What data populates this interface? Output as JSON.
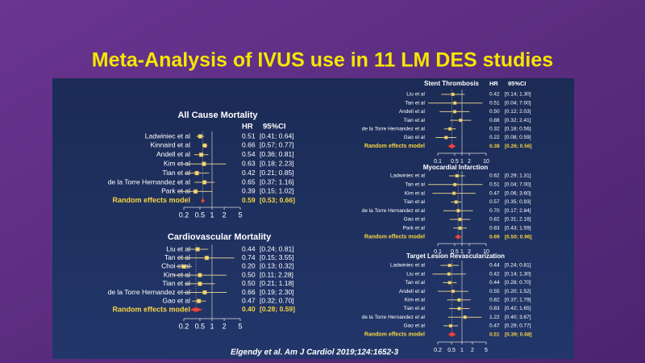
{
  "title": "Meta-Analysis of IVUS use in 11 LM DES studies",
  "citation": "Elgendy et al. Am J Cardiol 2019;124:1652-3",
  "chart_data": [
    {
      "type": "forest",
      "title": "All Cause Mortality",
      "columns": [
        "HR",
        "95%CI"
      ],
      "categories": [
        "Ladwiniec et al",
        "Kinnaird et al",
        "Andell et al",
        "Kim et al",
        "Tian et al",
        "de la Torre Hernandez et al",
        "Park et al"
      ],
      "values": [
        0.51,
        0.66,
        0.54,
        0.63,
        0.42,
        0.65,
        0.39
      ],
      "value_labels": [
        "0.51",
        "0.66",
        "0.54",
        "0.63",
        "0.42",
        "0.65",
        "0.39"
      ],
      "lower": [
        0.41,
        0.57,
        0.36,
        0.18,
        0.21,
        0.37,
        0.15
      ],
      "upper": [
        0.64,
        0.77,
        0.81,
        2.23,
        0.85,
        1.16,
        1.02
      ],
      "ci_labels": [
        "[0.41; 0.64]",
        "[0.57; 0.77]",
        "[0.36; 0.81]",
        "[0.18; 2.23]",
        "[0.21; 0.85]",
        "[0.37; 1.16]",
        "[0.15; 1.02]"
      ],
      "summary": {
        "name": "Random effects model",
        "value": 0.59,
        "value_label": "0.59",
        "lower": 0.53,
        "upper": 0.66,
        "ci_label": "[0.53; 0.66]"
      },
      "log_x": true,
      "xlim": [
        0.2,
        5
      ],
      "xticks": [
        0.2,
        0.5,
        1,
        2,
        5
      ]
    },
    {
      "type": "forest",
      "title": "Cardiovascular Mortality",
      "categories": [
        "Liu et al",
        "Tan et al",
        "Choi et al",
        "Kim et al",
        "Tian et al",
        "de la Torre Hernandez et al",
        "Gao et al"
      ],
      "values": [
        0.44,
        0.74,
        0.2,
        0.5,
        0.5,
        0.66,
        0.47
      ],
      "value_labels": [
        "0.44",
        "0.74",
        "0.20",
        "0.50",
        "0.50",
        "0.66",
        "0.47"
      ],
      "lower": [
        0.24,
        0.15,
        0.13,
        0.11,
        0.21,
        0.19,
        0.32
      ],
      "upper": [
        0.81,
        3.55,
        0.32,
        2.28,
        1.18,
        2.3,
        0.7
      ],
      "ci_labels": [
        "[0.24; 0.81]",
        "[0.15; 3.55]",
        "[0.13; 0.32]",
        "[0.11; 2.28]",
        "[0.21; 1.18]",
        "[0.19; 2.30]",
        "[0.32; 0.70]"
      ],
      "summary": {
        "name": "Random effects model",
        "value": 0.4,
        "value_label": "0.40",
        "lower": 0.28,
        "upper": 0.59,
        "ci_label": "[0.28; 0.59]"
      },
      "log_x": true,
      "xlim": [
        0.2,
        5
      ],
      "xticks": [
        0.2,
        0.5,
        1,
        2,
        5
      ]
    },
    {
      "type": "forest",
      "title": "Stent Thrombosis",
      "columns": [
        "HR",
        "95%CI"
      ],
      "categories": [
        "Liu et al",
        "Tan et al",
        "Andell et al",
        "Tian et al",
        "de la Torre Hernandez et al",
        "Gao et al"
      ],
      "values": [
        0.42,
        0.51,
        0.5,
        0.88,
        0.32,
        0.22
      ],
      "value_labels": [
        "0.42",
        "0.51",
        "0.50",
        "0.88",
        "0.32",
        "0.22"
      ],
      "lower": [
        0.14,
        0.04,
        0.12,
        0.32,
        0.18,
        0.08
      ],
      "upper": [
        1.3,
        7.0,
        2.03,
        2.41,
        0.56,
        0.59
      ],
      "ci_labels": [
        "[0.14; 1.30]",
        "[0.04; 7.00]",
        "[0.12; 2.03]",
        "[0.32; 2.41]",
        "[0.18; 0.56]",
        "[0.08; 0.59]"
      ],
      "summary": {
        "name": "Random effects model",
        "value": 0.38,
        "value_label": "0.38",
        "lower": 0.26,
        "upper": 0.56,
        "ci_label": "[0.26; 0.56]"
      },
      "log_x": true,
      "xlim": [
        0.1,
        10
      ],
      "xticks": [
        0.1,
        0.5,
        1,
        2,
        10
      ]
    },
    {
      "type": "forest",
      "title": "Myocardial Infarction",
      "categories": [
        "Ladwiniec et al",
        "Tan et al",
        "Kim et al",
        "Tian et al",
        "de la Torre Hernandez et al",
        "Gao et al",
        "Park et al"
      ],
      "values": [
        0.62,
        0.51,
        0.47,
        0.57,
        0.7,
        0.82,
        0.83
      ],
      "value_labels": [
        "0.62",
        "0.51",
        "0.47",
        "0.57",
        "0.70",
        "0.82",
        "0.83"
      ],
      "lower": [
        0.29,
        0.04,
        0.06,
        0.35,
        0.17,
        0.31,
        0.43
      ],
      "upper": [
        1.31,
        7.0,
        3.6,
        0.93,
        2.84,
        2.16,
        1.59
      ],
      "ci_labels": [
        "[0.29; 1.31]",
        "[0.04; 7.00]",
        "[0.06; 3.60]",
        "[0.35; 0.93]",
        "[0.17; 2.84]",
        "[0.31; 2.16]",
        "[0.43; 1.59]"
      ],
      "summary": {
        "name": "Random effects model",
        "value": 0.69,
        "value_label": "0.69",
        "lower": 0.5,
        "upper": 0.96,
        "ci_label": "[0.50; 0.96]"
      },
      "log_x": true,
      "xlim": [
        0.1,
        10
      ],
      "xticks": [
        0.1,
        0.5,
        1,
        2,
        10
      ]
    },
    {
      "type": "forest",
      "title": "Target Lesion Revascularization",
      "categories": [
        "Ladwiniec et al",
        "Liu et al",
        "Tan et al",
        "Andell et al",
        "Kim et al",
        "Tian et al",
        "de la Torre Hernandez et al",
        "Gao et al"
      ],
      "values": [
        0.44,
        0.42,
        0.44,
        0.55,
        0.82,
        0.83,
        1.22,
        0.47
      ],
      "value_labels": [
        "0.44",
        "0.42",
        "0.44",
        "0.55",
        "0.82",
        "0.83",
        "1.22",
        "0.47"
      ],
      "lower": [
        0.24,
        0.14,
        0.28,
        0.2,
        0.37,
        0.42,
        0.4,
        0.29
      ],
      "upper": [
        0.81,
        1.3,
        0.7,
        1.52,
        1.79,
        1.65,
        3.67,
        0.77
      ],
      "ci_labels": [
        "[0.24; 0.81]",
        "[0.14; 1.30]",
        "[0.28; 0.70]",
        "[0.20; 1.52]",
        "[0.37; 1.79]",
        "[0.42; 1.65]",
        "[0.40; 3.67]",
        "[0.29; 0.77]"
      ],
      "summary": {
        "name": "Random effects model",
        "value": 0.51,
        "value_label": "0.51",
        "lower": 0.39,
        "upper": 0.68,
        "ci_label": "[0.39; 0.68]"
      },
      "log_x": true,
      "xlim": [
        0.2,
        5
      ],
      "xticks": [
        0.2,
        0.5,
        1,
        2,
        5
      ]
    }
  ]
}
